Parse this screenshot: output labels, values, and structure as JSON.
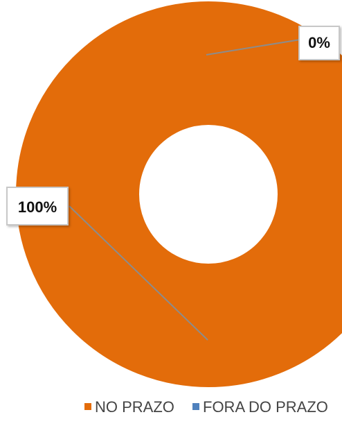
{
  "chart_data": {
    "type": "pie",
    "variant": "donut",
    "categories": [
      "NO PRAZO",
      "FORA DO PRAZO"
    ],
    "values": [
      100,
      0
    ],
    "data_labels": [
      "100%",
      "0%"
    ],
    "colors": [
      "#E36C0A",
      "#4F81BD"
    ],
    "legend": {
      "position": "bottom",
      "items": [
        {
          "label": "NO PRAZO",
          "color": "#E36C0A"
        },
        {
          "label": "FORA DO PRAZO",
          "color": "#4F81BD"
        }
      ]
    }
  }
}
